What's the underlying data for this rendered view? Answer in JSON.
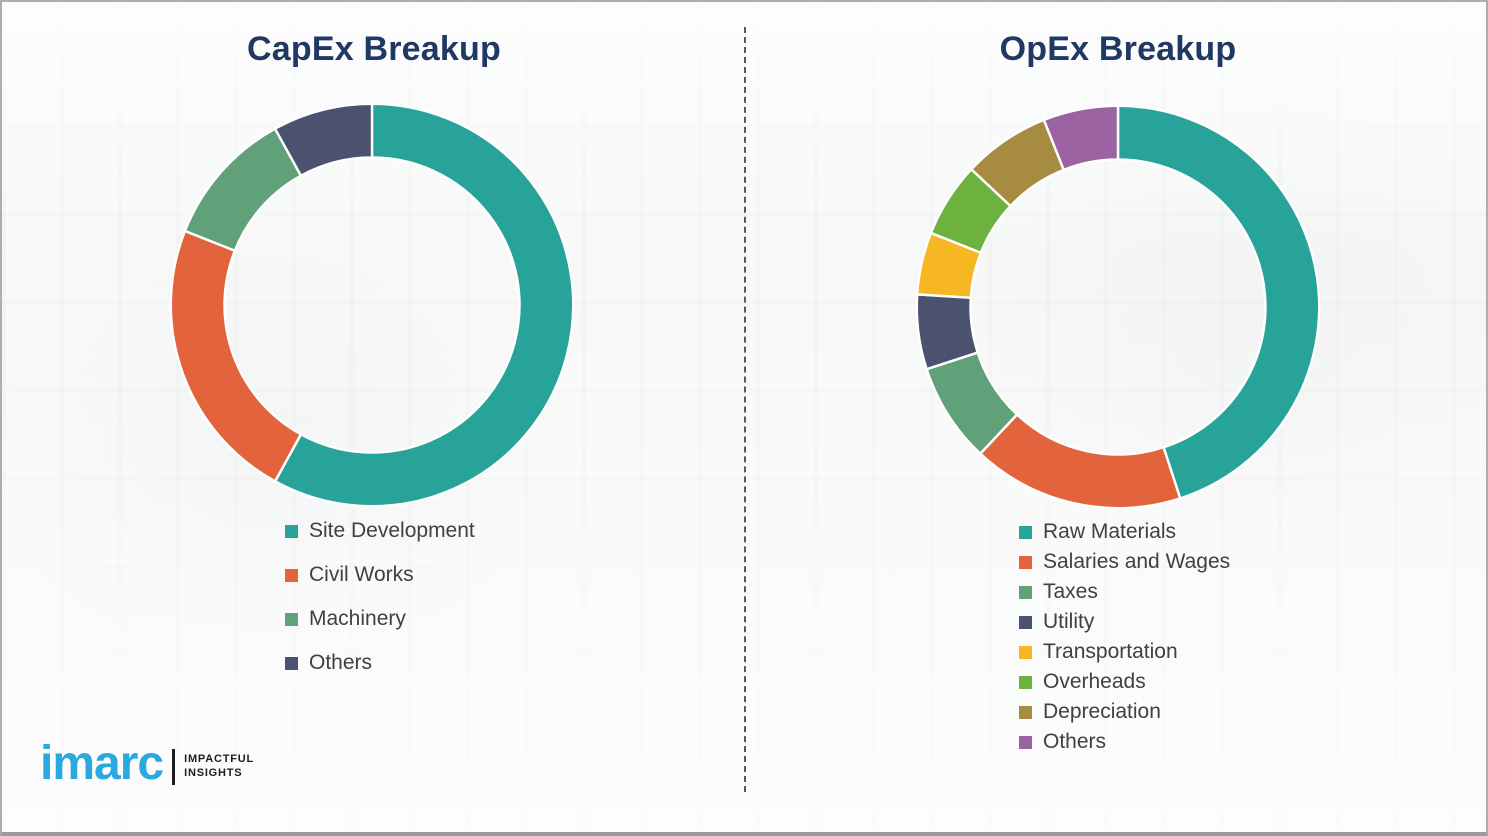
{
  "page": {
    "background_color": "#F4F5F5",
    "divider_style": "vertical-dashed",
    "segment_gap_color": "#FFFFFF"
  },
  "chart_data": [
    {
      "type": "pie",
      "variant": "donut",
      "title": "CapEx Breakup",
      "title_color": "#1F3864",
      "categories": [
        "Site Development",
        "Civil Works",
        "Machinery",
        "Others"
      ],
      "values": [
        58,
        23,
        11,
        8
      ],
      "colors": [
        "#27A399",
        "#E2633C",
        "#61A179",
        "#4B526F"
      ],
      "start_angle_deg": 0,
      "direction": "clockwise",
      "legend_position": "below"
    },
    {
      "type": "pie",
      "variant": "donut",
      "title": "OpEx Breakup",
      "title_color": "#1F3864",
      "categories": [
        "Raw Materials",
        "Salaries and Wages",
        "Taxes",
        "Utility",
        "Transportation",
        "Overheads",
        "Depreciation",
        "Others"
      ],
      "values": [
        45,
        17,
        8,
        6,
        5,
        6,
        7,
        6
      ],
      "colors": [
        "#27A399",
        "#E2633C",
        "#61A179",
        "#4B526F",
        "#F7B723",
        "#6DB23F",
        "#A68B41",
        "#9C63A2"
      ],
      "start_angle_deg": 0,
      "direction": "clockwise",
      "legend_position": "below"
    }
  ],
  "logo": {
    "brand": "imarc",
    "brand_color": "#2AA9E1",
    "tagline_line1": "IMPACTFUL",
    "tagline_line2": "INSIGHTS"
  }
}
